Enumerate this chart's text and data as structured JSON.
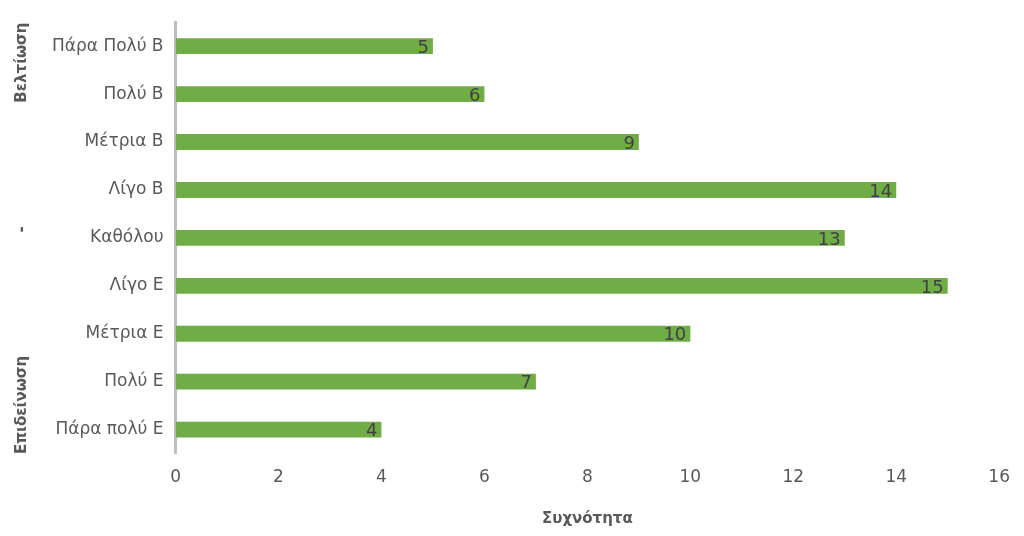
{
  "chart_data": {
    "type": "bar",
    "orientation": "horizontal",
    "xlabel": "Συχνότητα",
    "ylabel": "Επιδείνωση - Βελτίωση",
    "categories": [
      "Πάρα Πολύ Β",
      "Πολύ Β",
      "Μέτρια Β",
      "Λίγο Β",
      "Καθόλου",
      "Λίγο Ε",
      "Μέτρια Ε",
      "Πολύ Ε",
      "Πάρα πολύ Ε"
    ],
    "values": [
      5,
      6,
      9,
      14,
      13,
      15,
      10,
      7,
      4
    ],
    "color": "#70ad47",
    "xlim": [
      0,
      16
    ],
    "xticks": [
      0,
      2,
      4,
      6,
      8,
      10,
      12,
      14,
      16
    ],
    "grid": false,
    "legend": false,
    "data_labels": true
  }
}
